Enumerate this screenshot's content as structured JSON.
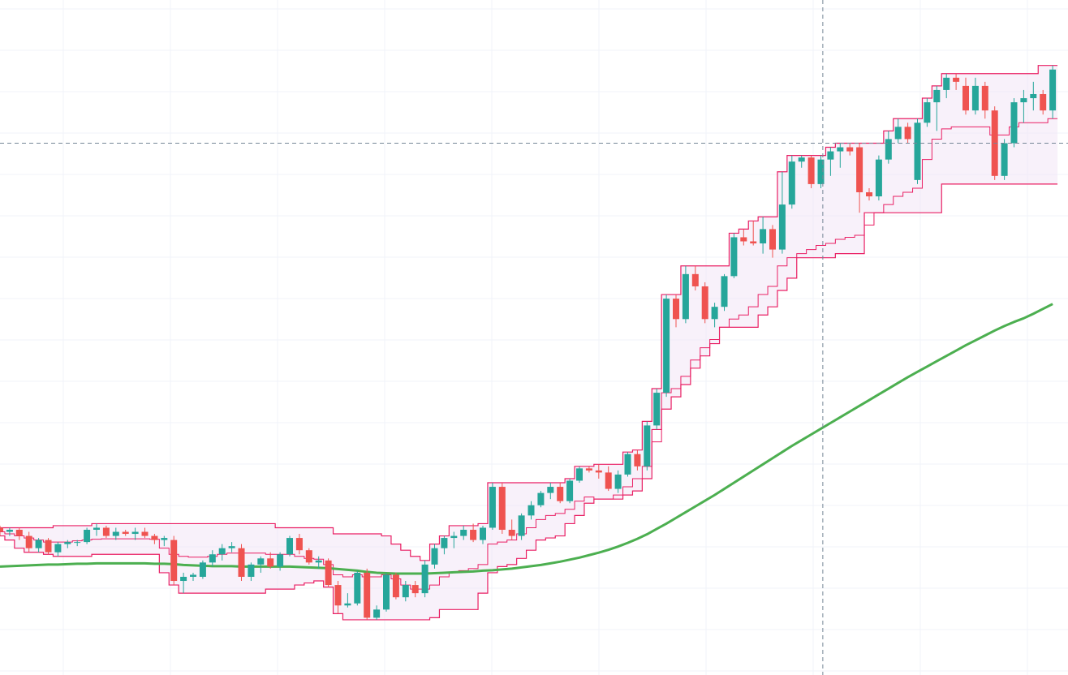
{
  "theme": {
    "background": "#ffffff",
    "grid": "#f0f3fa",
    "up": "#26a69a",
    "down": "#ef5350",
    "channel_line": "#e91e63",
    "channel_fill": "#f3e5f5",
    "ma_line": "#4caf50",
    "crosshair": "#758696"
  },
  "chart_data": {
    "type": "candlestick",
    "title": "",
    "xlabel": "",
    "ylabel": "",
    "ylim": [
      70,
      235
    ],
    "grid": true,
    "n_bars": 110,
    "candles": [
      [
        106.0,
        106.5,
        104.0,
        105.0
      ],
      [
        105.0,
        106.0,
        104.0,
        105.5
      ],
      [
        105.5,
        106.0,
        103.0,
        104.0
      ],
      [
        104.0,
        105.0,
        100.0,
        101.0
      ],
      [
        101.0,
        103.5,
        100.0,
        103.0
      ],
      [
        103.0,
        103.5,
        99.5,
        100.0
      ],
      [
        100.0,
        102.5,
        99.0,
        102.0
      ],
      [
        102.0,
        103.0,
        101.0,
        102.5
      ],
      [
        102.5,
        103.0,
        101.5,
        102.5
      ],
      [
        102.5,
        106.0,
        102.0,
        105.5
      ],
      [
        105.5,
        107.0,
        104.0,
        106.0
      ],
      [
        106.0,
        106.5,
        103.5,
        104.0
      ],
      [
        104.0,
        106.0,
        103.0,
        105.0
      ],
      [
        105.0,
        105.5,
        104.0,
        104.5
      ],
      [
        104.5,
        106.0,
        103.0,
        105.0
      ],
      [
        105.0,
        106.0,
        103.5,
        104.0
      ],
      [
        104.0,
        104.5,
        102.0,
        103.0
      ],
      [
        103.0,
        104.0,
        101.5,
        103.5
      ],
      [
        103.0,
        104.0,
        92.0,
        93.0
      ],
      [
        93.0,
        95.0,
        90.0,
        94.0
      ],
      [
        94.0,
        95.0,
        93.0,
        94.5
      ],
      [
        94.0,
        98.0,
        93.5,
        97.5
      ],
      [
        97.5,
        100.5,
        96.5,
        99.5
      ],
      [
        99.5,
        102.0,
        98.0,
        101.0
      ],
      [
        101.0,
        102.5,
        100.0,
        101.5
      ],
      [
        101.0,
        102.0,
        93.0,
        94.0
      ],
      [
        94.0,
        97.5,
        93.0,
        97.0
      ],
      [
        97.0,
        99.0,
        95.0,
        98.5
      ],
      [
        98.5,
        100.0,
        96.0,
        96.5
      ],
      [
        96.5,
        100.0,
        95.5,
        99.5
      ],
      [
        99.5,
        104.0,
        99.0,
        103.5
      ],
      [
        103.5,
        104.5,
        99.5,
        100.5
      ],
      [
        100.5,
        101.0,
        97.0,
        97.5
      ],
      [
        97.5,
        99.0,
        96.0,
        98.0
      ],
      [
        98.0,
        98.5,
        91.5,
        92.0
      ],
      [
        92.0,
        93.0,
        85.0,
        87.0
      ],
      [
        87.0,
        90.0,
        86.5,
        87.5
      ],
      [
        87.5,
        95.5,
        87.0,
        95.0
      ],
      [
        95.0,
        96.0,
        83.5,
        84.0
      ],
      [
        84.0,
        87.0,
        83.5,
        86.0
      ],
      [
        86.0,
        95.0,
        85.5,
        94.5
      ],
      [
        94.5,
        95.0,
        88.5,
        89.0
      ],
      [
        89.0,
        93.0,
        88.0,
        92.0
      ],
      [
        92.0,
        93.0,
        89.0,
        90.0
      ],
      [
        90.0,
        98.0,
        89.0,
        97.0
      ],
      [
        97.0,
        102.0,
        96.0,
        101.0
      ],
      [
        101.0,
        104.0,
        99.5,
        103.5
      ],
      [
        103.5,
        105.0,
        101.0,
        104.0
      ],
      [
        104.0,
        106.5,
        103.0,
        105.5
      ],
      [
        105.5,
        107.0,
        102.5,
        103.0
      ],
      [
        103.0,
        106.5,
        102.0,
        106.0
      ],
      [
        106.0,
        117.0,
        105.5,
        116.0
      ],
      [
        116.0,
        117.0,
        104.5,
        105.5
      ],
      [
        105.5,
        108.0,
        103.0,
        104.0
      ],
      [
        104.0,
        109.5,
        103.0,
        109.0
      ],
      [
        109.0,
        112.5,
        108.0,
        111.5
      ],
      [
        111.5,
        115.0,
        111.0,
        114.5
      ],
      [
        114.5,
        117.0,
        113.0,
        116.0
      ],
      [
        116.0,
        117.0,
        112.0,
        112.5
      ],
      [
        112.5,
        118.0,
        112.0,
        117.5
      ],
      [
        117.5,
        121.0,
        117.0,
        120.5
      ],
      [
        120.5,
        121.0,
        119.5,
        120.0
      ],
      [
        120.0,
        121.5,
        118.0,
        119.5
      ],
      [
        119.5,
        121.0,
        115.0,
        115.5
      ],
      [
        115.5,
        120.0,
        114.5,
        119.0
      ],
      [
        119.0,
        124.5,
        118.5,
        124.0
      ],
      [
        124.0,
        125.0,
        120.0,
        121.0
      ],
      [
        121.0,
        132.0,
        120.0,
        131.0
      ],
      [
        131.0,
        140.0,
        130.0,
        139.0
      ],
      [
        139.0,
        163.0,
        138.0,
        162.0
      ],
      [
        162.0,
        163.0,
        155.0,
        157.0
      ],
      [
        157.0,
        170.0,
        156.0,
        168.0
      ],
      [
        168.0,
        170.0,
        164.0,
        165.0
      ],
      [
        165.0,
        166.0,
        156.0,
        157.0
      ],
      [
        157.0,
        161.0,
        155.0,
        160.0
      ],
      [
        160.0,
        168.0,
        159.0,
        167.5
      ],
      [
        167.5,
        178.0,
        167.0,
        177.0
      ],
      [
        177.0,
        179.0,
        175.0,
        176.0
      ],
      [
        176.0,
        181.0,
        175.0,
        175.5
      ],
      [
        175.5,
        182.0,
        173.0,
        179.0
      ],
      [
        179.0,
        180.0,
        172.0,
        174.0
      ],
      [
        174.0,
        193.0,
        173.0,
        185.0
      ],
      [
        185.0,
        197.0,
        184.0,
        195.5
      ],
      [
        195.5,
        197.0,
        194.0,
        196.5
      ],
      [
        196.5,
        197.0,
        189.0,
        190.0
      ],
      [
        190.0,
        197.0,
        189.0,
        196.0
      ],
      [
        196.0,
        199.0,
        192.0,
        198.0
      ],
      [
        198.0,
        200.0,
        194.0,
        199.0
      ],
      [
        199.0,
        200.0,
        197.0,
        198.0
      ],
      [
        199.0,
        200.0,
        183.0,
        188.0
      ],
      [
        188.0,
        189.0,
        186.0,
        187.0
      ],
      [
        187.0,
        197.0,
        186.0,
        196.0
      ],
      [
        196.0,
        203.0,
        195.0,
        201.0
      ],
      [
        201.0,
        206.0,
        200.0,
        204.0
      ],
      [
        204.0,
        205.0,
        200.0,
        201.0
      ],
      [
        191.0,
        206.0,
        190.0,
        205.0
      ],
      [
        205.0,
        211.0,
        204.0,
        210.0
      ],
      [
        210.0,
        214.0,
        203.0,
        213.0
      ],
      [
        213.0,
        217.0,
        211.0,
        216.0
      ],
      [
        216.0,
        217.0,
        213.0,
        215.0
      ],
      [
        214.0,
        216.0,
        207.0,
        208.0
      ],
      [
        208.0,
        216.0,
        207.0,
        214.0
      ],
      [
        214.0,
        215.0,
        206.0,
        208.0
      ],
      [
        208.0,
        209.0,
        191.0,
        192.0
      ],
      [
        192.0,
        201.0,
        191.0,
        200.0
      ],
      [
        200.0,
        211.0,
        199.0,
        210.0
      ],
      [
        210.0,
        213.0,
        205.0,
        211.0
      ],
      [
        211.0,
        215.0,
        208.0,
        212.0
      ],
      [
        212.0,
        213.0,
        207.0,
        208.0
      ],
      [
        208.0,
        219.0,
        206.0,
        218.0
      ]
    ],
    "ma": [
      96.5,
      96.6,
      96.7,
      96.8,
      96.9,
      97.0,
      97.0,
      97.1,
      97.2,
      97.2,
      97.3,
      97.3,
      97.3,
      97.3,
      97.3,
      97.3,
      97.2,
      97.2,
      97.1,
      96.9,
      96.8,
      96.7,
      96.6,
      96.6,
      96.6,
      96.5,
      96.5,
      96.5,
      96.5,
      96.5,
      96.5,
      96.4,
      96.3,
      96.2,
      96.1,
      95.9,
      95.7,
      95.5,
      95.2,
      95.0,
      94.9,
      94.8,
      94.8,
      94.8,
      94.8,
      94.9,
      95.0,
      95.1,
      95.2,
      95.3,
      95.5,
      95.6,
      95.8,
      96.0,
      96.3,
      96.6,
      96.9,
      97.3,
      97.7,
      98.2,
      98.7,
      99.3,
      99.9,
      100.6,
      101.4,
      102.3,
      103.3,
      104.4,
      105.7,
      107.0,
      108.4,
      109.8,
      111.2,
      112.6,
      114.0,
      115.5,
      117.0,
      118.5,
      120.0,
      121.5,
      123.0,
      124.5,
      126.0,
      127.4,
      128.8,
      130.2,
      131.6,
      133.0,
      134.4,
      135.8,
      137.2,
      138.6,
      140.0,
      141.4,
      142.8,
      144.1,
      145.4,
      146.7,
      148.0,
      149.3,
      150.6,
      151.8,
      153.0,
      154.2,
      155.3,
      156.3,
      157.2,
      158.3,
      159.5,
      160.7
    ],
    "channel_upper": [
      106.0,
      106.0,
      106.0,
      106.0,
      106.0,
      106.0,
      106.5,
      106.5,
      106.5,
      106.5,
      107.0,
      107.0,
      107.0,
      107.0,
      107.0,
      107.0,
      107.0,
      107.0,
      107.0,
      107.0,
      107.0,
      107.0,
      107.0,
      107.0,
      107.0,
      107.0,
      107.0,
      107.0,
      107.0,
      106.0,
      106.0,
      106.0,
      106.0,
      106.0,
      106.0,
      104.5,
      104.5,
      104.5,
      104.5,
      104.5,
      104.0,
      102.0,
      100.5,
      99.0,
      98.0,
      102.0,
      104.0,
      106.5,
      106.5,
      106.5,
      107.0,
      117.0,
      117.0,
      117.0,
      117.0,
      117.0,
      117.0,
      117.0,
      117.0,
      118.0,
      121.0,
      121.0,
      121.5,
      121.5,
      121.5,
      124.5,
      125.0,
      132.0,
      140.0,
      163.0,
      163.0,
      170.0,
      170.0,
      170.0,
      170.0,
      170.0,
      178.0,
      179.0,
      181.0,
      182.0,
      182.0,
      193.0,
      197.0,
      197.0,
      197.0,
      197.0,
      199.0,
      200.0,
      200.0,
      200.0,
      200.0,
      200.0,
      203.0,
      206.0,
      206.0,
      206.0,
      211.0,
      214.0,
      217.0,
      217.0,
      217.0,
      217.0,
      217.0,
      217.0,
      217.0,
      217.0,
      217.0,
      217.0,
      219.0,
      219.0
    ],
    "channel_middle": [
      105.0,
      104.5,
      104.0,
      103.5,
      103.0,
      102.5,
      102.5,
      102.5,
      102.8,
      103.0,
      103.2,
      103.3,
      103.3,
      103.3,
      103.3,
      103.3,
      103.2,
      101.0,
      99.5,
      99.0,
      98.8,
      98.8,
      99.0,
      99.5,
      99.8,
      99.8,
      99.8,
      99.8,
      99.5,
      99.5,
      99.5,
      99.0,
      98.5,
      98.3,
      97.0,
      94.5,
      94.0,
      94.5,
      94.0,
      94.0,
      94.5,
      93.5,
      92.0,
      91.0,
      91.0,
      92.0,
      94.0,
      95.0,
      95.5,
      96.0,
      97.0,
      102.0,
      102.5,
      103.0,
      104.5,
      106.0,
      108.0,
      109.0,
      109.5,
      110.5,
      112.5,
      113.5,
      113.0,
      113.0,
      114.0,
      116.0,
      118.0,
      121.0,
      127.0,
      139.0,
      140.0,
      143.0,
      147.0,
      150.0,
      152.0,
      155.0,
      157.0,
      158.0,
      160.0,
      163.0,
      165.0,
      170.0,
      172.0,
      173.0,
      174.0,
      175.0,
      175.5,
      176.5,
      177.0,
      177.5,
      180.0,
      183.0,
      185.0,
      187.0,
      188.0,
      189.0,
      196.0,
      201.0,
      203.5,
      204.0,
      204.0,
      204.0,
      204.0,
      202.0,
      202.0,
      204.0,
      205.0,
      205.0,
      205.0,
      206.0
    ],
    "channel_lower": [
      104.0,
      103.0,
      101.0,
      100.0,
      100.0,
      99.5,
      99.0,
      99.0,
      99.0,
      99.0,
      99.5,
      99.5,
      99.5,
      99.5,
      99.5,
      99.5,
      99.5,
      95.0,
      92.0,
      90.0,
      90.0,
      90.0,
      90.0,
      90.0,
      90.0,
      90.0,
      90.0,
      90.0,
      91.0,
      91.0,
      91.0,
      92.0,
      92.5,
      93.0,
      91.5,
      85.0,
      83.5,
      83.5,
      83.5,
      83.5,
      83.5,
      83.5,
      83.5,
      83.5,
      83.5,
      84.0,
      86.0,
      86.0,
      86.0,
      86.0,
      90.0,
      95.0,
      96.5,
      97.0,
      98.5,
      100.5,
      103.0,
      103.5,
      104.0,
      107.0,
      109.0,
      112.0,
      113.0,
      113.0,
      113.0,
      114.0,
      115.0,
      118.0,
      130.0,
      135.0,
      138.0,
      141.0,
      145.0,
      148.0,
      151.0,
      155.0,
      155.0,
      155.0,
      155.0,
      158.0,
      160.0,
      164.0,
      167.0,
      172.0,
      172.0,
      172.0,
      172.0,
      173.0,
      173.0,
      173.0,
      183.0,
      183.0,
      183.0,
      183.0,
      183.0,
      183.0,
      183.0,
      183.0,
      190.0,
      190.0,
      190.0,
      190.0,
      190.0,
      190.0,
      190.0,
      190.0,
      190.0,
      190.0,
      190.0,
      190.0
    ],
    "crosshair": {
      "bar_index": 85.2,
      "price": 200.0
    }
  }
}
